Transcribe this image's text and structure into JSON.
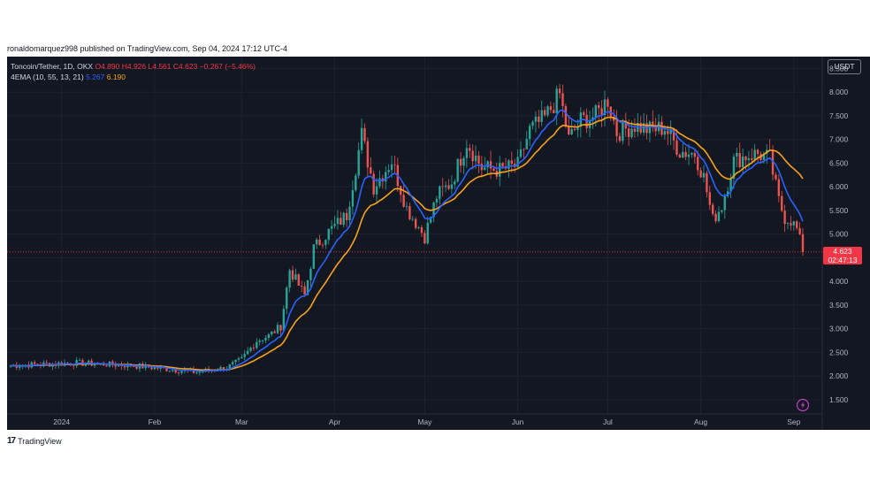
{
  "published_line": "ronaldomarquez998 published on TradingView.com, Sep 04, 2024 17:12 UTC-4",
  "symbol": {
    "name": "Toncoin/Tether, 1D, OKX",
    "open": "O4.890",
    "high": "H4.926",
    "low": "L4.561",
    "close": "C4.623",
    "change": "−0.267 (−5.46%)"
  },
  "indicator": {
    "label": "4EMA (10, 55, 13, 21)",
    "value_fast": "5.267",
    "value_slow": "6.190"
  },
  "unit": "USDT",
  "last_price_label": "4.623",
  "countdown_label": "02:47:13",
  "footer_brand": "TradingView",
  "colors": {
    "background": "#131722",
    "up": "#26a69a",
    "down": "#ef5350",
    "ema_fast": "#2962ff",
    "ema_slow": "#f7a21b",
    "price_label": "#f23645"
  },
  "chart_data": {
    "type": "line",
    "title": "Toncoin/Tether, 1D, OKX",
    "xlabel": "",
    "ylabel": "",
    "ylim": [
      1.2,
      8.75
    ],
    "x_range": [
      "2023-12-15",
      "2024-09-04"
    ],
    "grid": true,
    "y_ticks": [
      "8.500",
      "8.000",
      "7.500",
      "7.000",
      "6.500",
      "6.000",
      "5.500",
      "5.000",
      "4.500",
      "4.000",
      "3.500",
      "3.000",
      "2.500",
      "2.000",
      "1.500"
    ],
    "x_ticks": [
      {
        "label": "2024",
        "date": "2024-01-01"
      },
      {
        "label": "Feb",
        "date": "2024-02-01"
      },
      {
        "label": "Mar",
        "date": "2024-03-01"
      },
      {
        "label": "Apr",
        "date": "2024-04-01"
      },
      {
        "label": "May",
        "date": "2024-05-01"
      },
      {
        "label": "Jun",
        "date": "2024-06-01"
      },
      {
        "label": "Jul",
        "date": "2024-07-01"
      },
      {
        "label": "Aug",
        "date": "2024-08-01"
      },
      {
        "label": "Sep",
        "date": "2024-09-01"
      }
    ],
    "price_anchors": [
      [
        "2023-12-15",
        2.22
      ],
      [
        "2023-12-25",
        2.25
      ],
      [
        "2024-01-05",
        2.28
      ],
      [
        "2024-01-15",
        2.25
      ],
      [
        "2024-01-25",
        2.22
      ],
      [
        "2024-02-05",
        2.15
      ],
      [
        "2024-02-15",
        2.08
      ],
      [
        "2024-02-25",
        2.18
      ],
      [
        "2024-03-01",
        2.35
      ],
      [
        "2024-03-06",
        2.75
      ],
      [
        "2024-03-10",
        2.85
      ],
      [
        "2024-03-14",
        3.05
      ],
      [
        "2024-03-17",
        4.25
      ],
      [
        "2024-03-22",
        3.7
      ],
      [
        "2024-03-25",
        4.7
      ],
      [
        "2024-03-30",
        5.05
      ],
      [
        "2024-04-05",
        5.4
      ],
      [
        "2024-04-10",
        7.1
      ],
      [
        "2024-04-14",
        6.0
      ],
      [
        "2024-04-20",
        6.55
      ],
      [
        "2024-04-25",
        5.55
      ],
      [
        "2024-05-01",
        4.95
      ],
      [
        "2024-05-05",
        5.8
      ],
      [
        "2024-05-10",
        6.1
      ],
      [
        "2024-05-15",
        6.95
      ],
      [
        "2024-05-20",
        6.4
      ],
      [
        "2024-05-26",
        6.35
      ],
      [
        "2024-06-01",
        6.45
      ],
      [
        "2024-06-05",
        7.2
      ],
      [
        "2024-06-10",
        7.45
      ],
      [
        "2024-06-15",
        7.95
      ],
      [
        "2024-06-18",
        7.0
      ],
      [
        "2024-06-22",
        7.4
      ],
      [
        "2024-06-27",
        7.5
      ],
      [
        "2024-07-01",
        7.85
      ],
      [
        "2024-07-04",
        7.15
      ],
      [
        "2024-07-10",
        7.3
      ],
      [
        "2024-07-15",
        7.2
      ],
      [
        "2024-07-20",
        7.25
      ],
      [
        "2024-07-25",
        6.75
      ],
      [
        "2024-07-30",
        6.7
      ],
      [
        "2024-08-02",
        6.2
      ],
      [
        "2024-08-05",
        5.3
      ],
      [
        "2024-08-08",
        5.6
      ],
      [
        "2024-08-12",
        6.55
      ],
      [
        "2024-08-16",
        6.65
      ],
      [
        "2024-08-20",
        6.7
      ],
      [
        "2024-08-24",
        6.6
      ],
      [
        "2024-08-27",
        5.7
      ],
      [
        "2024-08-29",
        5.35
      ],
      [
        "2024-08-31",
        5.3
      ],
      [
        "2024-09-02",
        5.1
      ],
      [
        "2024-09-04",
        4.623
      ]
    ],
    "series": [
      {
        "name": "4EMA 10",
        "color": "#2962ff",
        "last_value": 5.267
      },
      {
        "name": "4EMA 55",
        "color": "#f7a21b",
        "last_value": 6.19
      }
    ],
    "last_price": 4.623
  }
}
